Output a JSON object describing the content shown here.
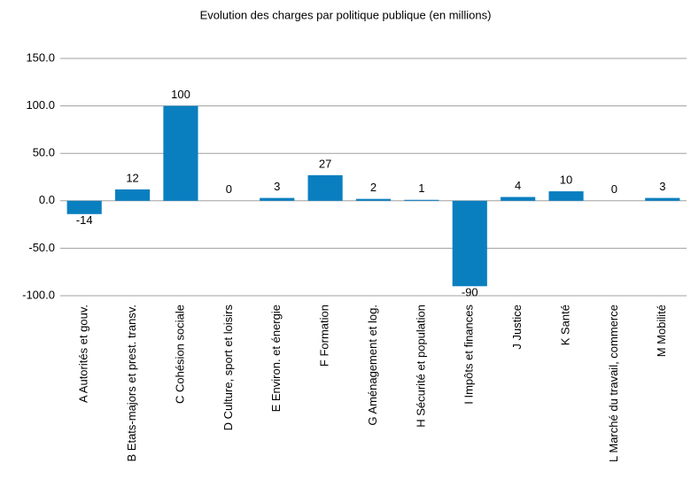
{
  "chart_data": {
    "type": "bar",
    "title": "Evolution des charges par politique publique (en millions)",
    "categories": [
      "A Autorités et gouv.",
      "B Etats-majors et prest. transv.",
      "C Cohésion sociale",
      "D Culture, sport et loisirs",
      "E Environ. et énergie",
      "F Formation",
      "G Aménagement et log.",
      "H Sécurité et population",
      "I Impôts et finances",
      "J Justice",
      "K Santé",
      "L Marché du travail, commerce",
      "M Mobilité"
    ],
    "values": [
      -14,
      12,
      100,
      0,
      3,
      27,
      2,
      1,
      -90,
      4,
      10,
      0,
      3
    ],
    "color": "#0a7fc0",
    "ylim": [
      -100,
      150
    ],
    "yticks": [
      {
        "value": -100,
        "label": "-100.0"
      },
      {
        "value": -50,
        "label": "-50.0"
      },
      {
        "value": 0,
        "label": "0.0"
      },
      {
        "value": 50,
        "label": "50.0"
      },
      {
        "value": 100,
        "label": "100.0"
      },
      {
        "value": 150,
        "label": "150.0"
      }
    ],
    "grid": true
  }
}
